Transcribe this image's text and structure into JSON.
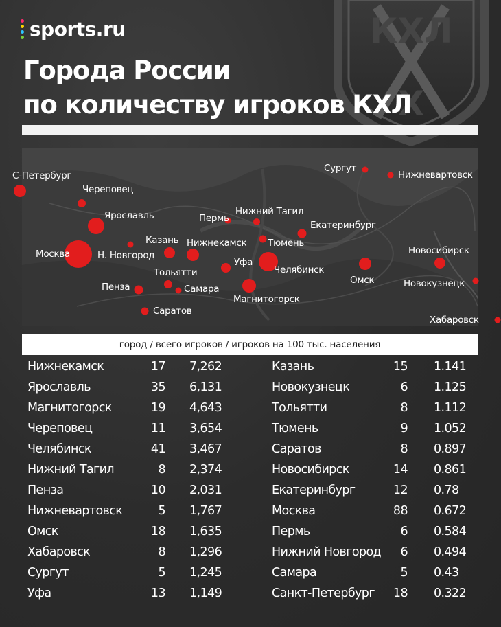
{
  "brand": {
    "name": "sports.ru",
    "dot_colors": [
      "#ff2a6d",
      "#ffd400",
      "#2ec4ff",
      "#7bd13b"
    ]
  },
  "title": {
    "line1": "Города России",
    "line2": "по количеству игроков КХЛ"
  },
  "emblem": {
    "text_top": "КХЛ",
    "text_bottom": "Х",
    "icon": "khl-shield-logo"
  },
  "map": {
    "dot_color": "#e21d1d",
    "cities": [
      {
        "name": "С-Петербург"
      },
      {
        "name": "Череповец"
      },
      {
        "name": "Ярославль"
      },
      {
        "name": "Москва"
      },
      {
        "name": "Н. Новгород"
      },
      {
        "name": "Казань"
      },
      {
        "name": "Нижнекамск"
      },
      {
        "name": "Пермь"
      },
      {
        "name": "Нижний Тагил"
      },
      {
        "name": "Екатеринбург"
      },
      {
        "name": "Тюмень"
      },
      {
        "name": "Уфа"
      },
      {
        "name": "Челябинск"
      },
      {
        "name": "Магнитогорск"
      },
      {
        "name": "Тольятти"
      },
      {
        "name": "Самара"
      },
      {
        "name": "Пенза"
      },
      {
        "name": "Саратов"
      },
      {
        "name": "Сургут"
      },
      {
        "name": "Нижневартовск"
      },
      {
        "name": "Омск"
      },
      {
        "name": "Новосибирск"
      },
      {
        "name": "Новокузнецк"
      },
      {
        "name": "Хабаровск"
      }
    ]
  },
  "table": {
    "header": "город /  всего игроков / игроков на 100 тыс. населения",
    "left": [
      {
        "city": "Нижнекамск",
        "total": "17",
        "per100k": "7,262"
      },
      {
        "city": "Ярославль",
        "total": "35",
        "per100k": "6,131"
      },
      {
        "city": "Магнитогорск",
        "total": "19",
        "per100k": "4,643"
      },
      {
        "city": "Череповец",
        "total": "11",
        "per100k": "3,654"
      },
      {
        "city": "Челябинск",
        "total": "41",
        "per100k": "3,467"
      },
      {
        "city": "Нижний Тагил",
        "total": "8",
        "per100k": "2,374"
      },
      {
        "city": "Пенза",
        "total": "10",
        "per100k": "2,031"
      },
      {
        "city": "Нижневартовск",
        "total": "5",
        "per100k": "1,767"
      },
      {
        "city": "Омск",
        "total": "18",
        "per100k": "1,635"
      },
      {
        "city": "Хабаровск",
        "total": "8",
        "per100k": "1,296"
      },
      {
        "city": "Сургут",
        "total": "5",
        "per100k": "1,245"
      },
      {
        "city": "Уфа",
        "total": "13",
        "per100k": "1,149"
      }
    ],
    "right": [
      {
        "city": "Казань",
        "total": "15",
        "per100k": "1.141"
      },
      {
        "city": "Новокузнецк",
        "total": "6",
        "per100k": "1.125"
      },
      {
        "city": "Тольятти",
        "total": "8",
        "per100k": "1.112"
      },
      {
        "city": "Тюмень",
        "total": "9",
        "per100k": "1.052"
      },
      {
        "city": "Саратов",
        "total": "8",
        "per100k": "0.897"
      },
      {
        "city": "Новосибирск",
        "total": "14",
        "per100k": "0.861"
      },
      {
        "city": "Екатеринбург",
        "total": "12",
        "per100k": "0.78"
      },
      {
        "city": "Москва",
        "total": "88",
        "per100k": "0.672"
      },
      {
        "city": "Пермь",
        "total": "6",
        "per100k": "0.584"
      },
      {
        "city": "Нижний Новгород",
        "total": "6",
        "per100k": "0.494"
      },
      {
        "city": "Самара",
        "total": "5",
        "per100k": "0.43"
      },
      {
        "city": "Санкт-Петербург",
        "total": "18",
        "per100k": "0.322"
      }
    ]
  }
}
